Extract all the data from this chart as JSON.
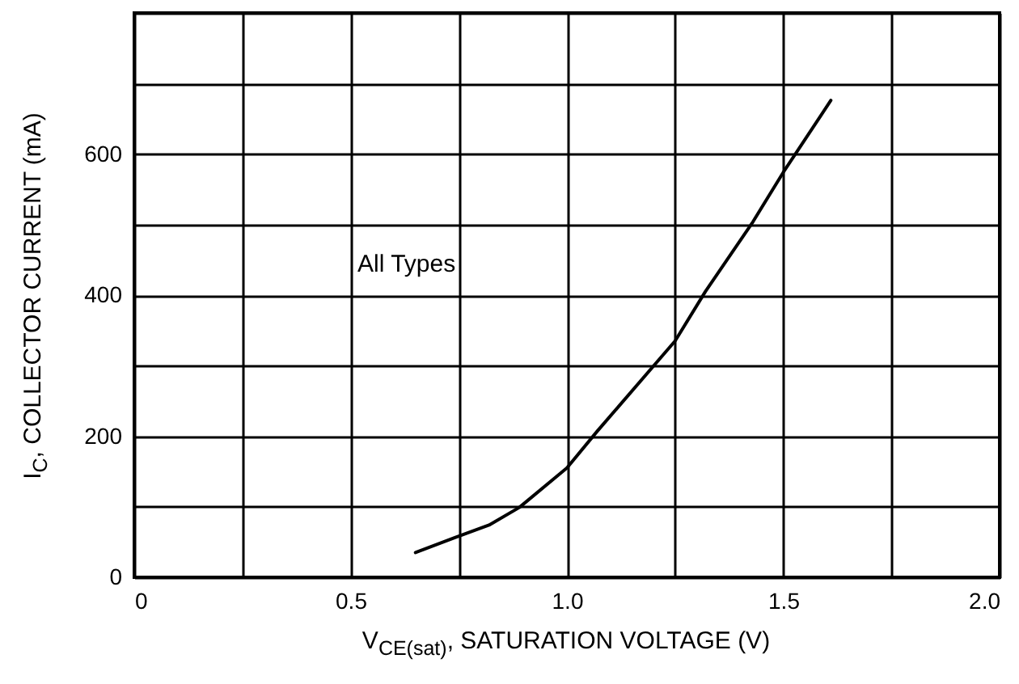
{
  "chart_data": {
    "type": "line",
    "xlabel": "V$_{CE(sat)}$, SATURATION VOLTAGE (V)",
    "ylabel": "I$_{C}$, COLLECTOR CURRENT (mA)",
    "annotations": [
      "All Types"
    ],
    "series": [
      {
        "color": "#000000",
        "x": [
          0.65,
          0.74,
          0.82,
          0.89,
          1.0,
          1.07,
          1.25,
          1.32,
          1.43,
          1.5,
          1.61
        ],
        "values": [
          35,
          56,
          74,
          99,
          155,
          207,
          335,
          405,
          504,
          574,
          676
        ]
      }
    ],
    "xlim": [
      0,
      2.0
    ],
    "xticks": [
      0,
      {
        "value": 0.25,
        "label": null
      },
      {
        "value": 0.5,
        "label": "0.5"
      },
      {
        "value": 0.75,
        "label": null
      },
      {
        "value": 1.0,
        "label": "1.0"
      },
      {
        "value": 1.25,
        "label": null
      },
      {
        "value": 1.5,
        "label": "1.5"
      },
      {
        "value": 1.75,
        "label": null
      },
      {
        "value": 2.0,
        "label": "2.0"
      }
    ],
    "ylim": [
      0,
      800
    ],
    "yticks": [
      0,
      {
        "value": 100,
        "label": null
      },
      200,
      {
        "value": 300,
        "label": null
      },
      400,
      {
        "value": 500,
        "label": null
      },
      600,
      {
        "value": 700,
        "label": null
      },
      {
        "value": 800,
        "label": null
      }
    ],
    "grid": true,
    "marker": "none",
    "line_style": "solid"
  }
}
